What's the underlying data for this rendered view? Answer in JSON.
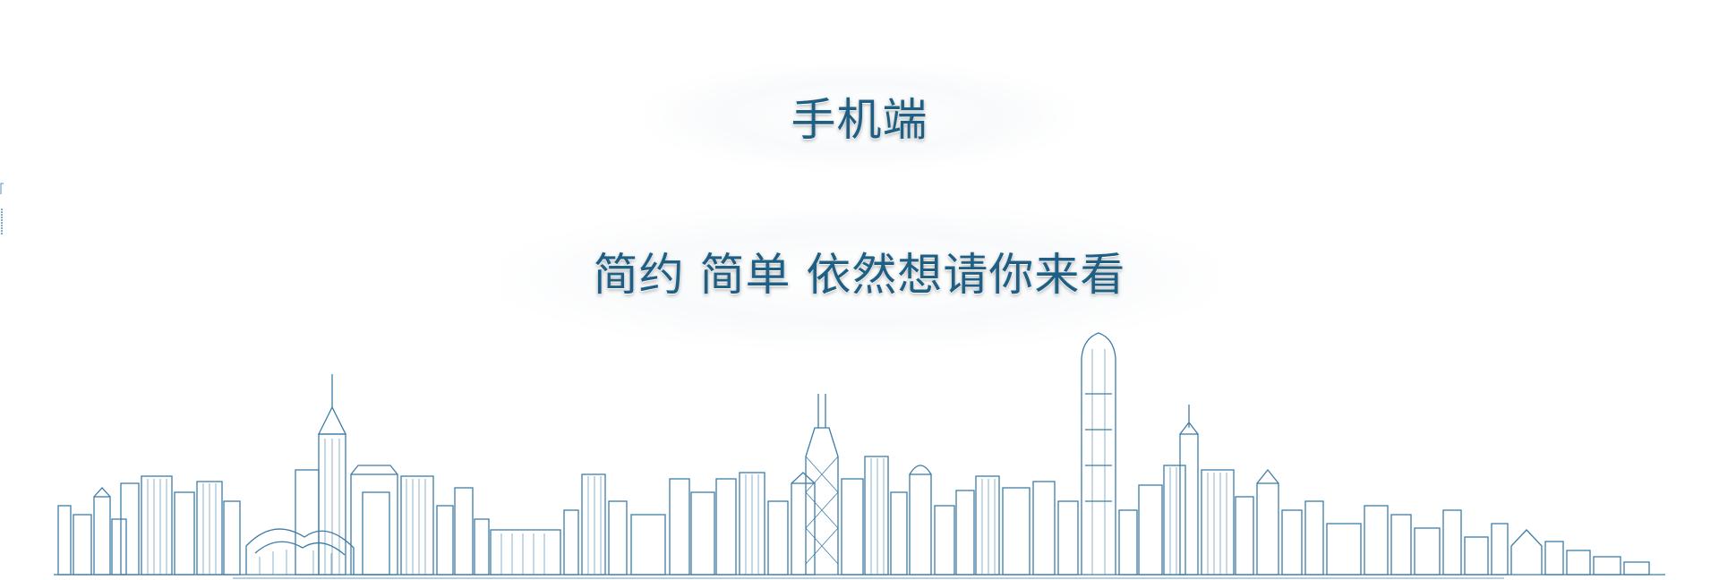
{
  "banner": {
    "title": "手机端",
    "subtitle": "简约 简单 依然想请你来看"
  },
  "colors": {
    "background": "#ffffff",
    "text": "#1f5f83",
    "skyline_stroke": "#3d7ca8"
  },
  "icons": {
    "skyline": "city-skyline-line-art"
  }
}
